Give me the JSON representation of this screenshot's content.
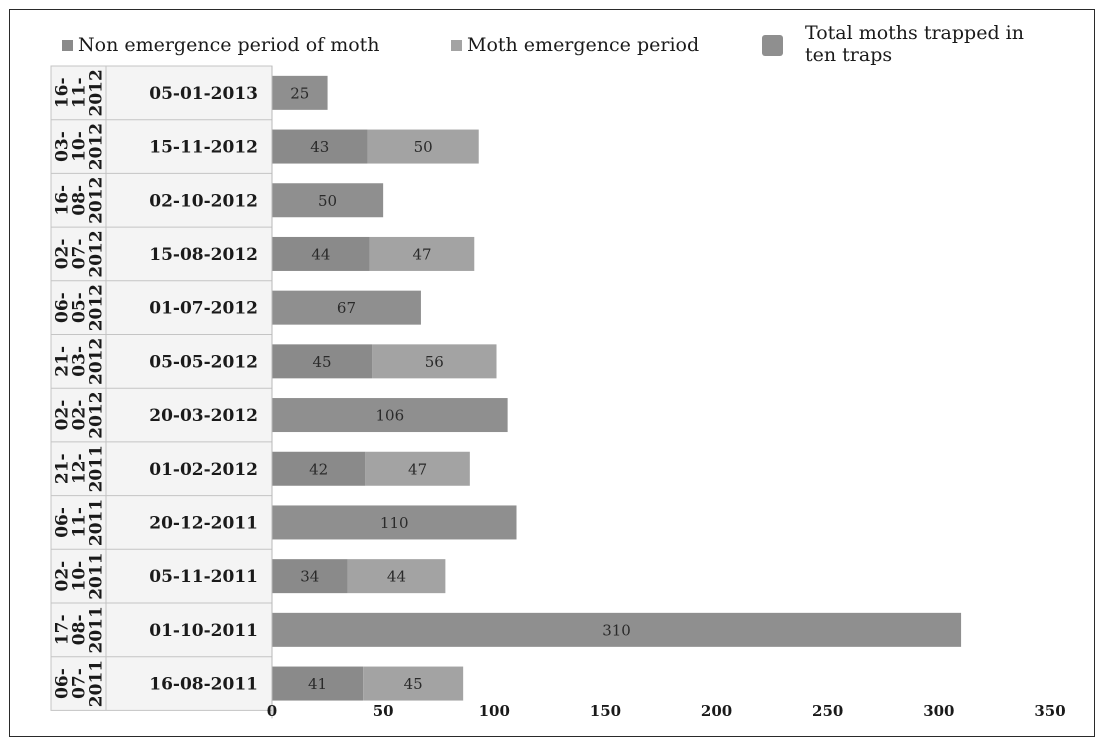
{
  "chart_data": {
    "type": "bar",
    "orientation": "horizontal",
    "stacked": true,
    "legend": [
      {
        "label": "Non emergence period of moth",
        "color": "#8a8a8a"
      },
      {
        "label": "Moth emergence period",
        "color": "#a3a3a3"
      },
      {
        "label": "Total moths trapped in ten traps",
        "color": "#8f8f8f"
      }
    ],
    "categories": [
      {
        "outer": "16-11-2012",
        "inner": "05-01-2013"
      },
      {
        "outer": "03-10-2012",
        "inner": "15-11-2012"
      },
      {
        "outer": "16-08-2012",
        "inner": "02-10-2012"
      },
      {
        "outer": "02-07-2012",
        "inner": "15-08-2012"
      },
      {
        "outer": "06-05-2012",
        "inner": "01-07-2012"
      },
      {
        "outer": "21-03-2012",
        "inner": "05-05-2012"
      },
      {
        "outer": "02-02-2012",
        "inner": "20-03-2012"
      },
      {
        "outer": "21-12-2011",
        "inner": "01-02-2012"
      },
      {
        "outer": "06-11-2011",
        "inner": "20-12-2011"
      },
      {
        "outer": "02-10-2011",
        "inner": "05-11-2011"
      },
      {
        "outer": "17-08-2011",
        "inner": "01-10-2011"
      },
      {
        "outer": "06-07-2011",
        "inner": "16-08-2011"
      }
    ],
    "series": [
      {
        "name": "Non emergence period of moth",
        "values": [
          null,
          43,
          null,
          44,
          null,
          45,
          null,
          42,
          null,
          34,
          null,
          41
        ]
      },
      {
        "name": "Moth emergence period",
        "values": [
          null,
          50,
          null,
          47,
          null,
          56,
          null,
          47,
          null,
          44,
          null,
          45
        ]
      },
      {
        "name": "Total moths trapped in ten traps",
        "values": [
          25,
          null,
          50,
          null,
          67,
          null,
          106,
          null,
          110,
          null,
          310,
          null
        ]
      }
    ],
    "xlim": [
      0,
      350
    ],
    "xticks": [
      0,
      50,
      100,
      150,
      200,
      250,
      300,
      350
    ],
    "grid": false,
    "legend_position": "top"
  }
}
